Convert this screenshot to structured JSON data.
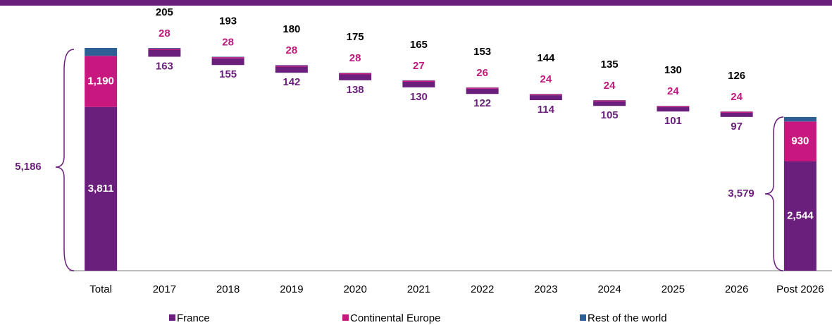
{
  "chart_data": {
    "type": "waterfall",
    "categories": [
      "Total",
      "2017",
      "2018",
      "2019",
      "2020",
      "2021",
      "2022",
      "2023",
      "2024",
      "2025",
      "2026",
      "Post 2026"
    ],
    "series": [
      {
        "name": "France",
        "color": "#6b1f7c",
        "label_color": "#6b1f7c",
        "values": [
          3811,
          163,
          155,
          142,
          138,
          130,
          122,
          114,
          105,
          101,
          97,
          2544
        ],
        "value_labels": [
          "3,811",
          "163",
          "155",
          "142",
          "138",
          "130",
          "122",
          "114",
          "105",
          "101",
          "97",
          "2,544"
        ]
      },
      {
        "name": "Continental Europe",
        "color": "#c8187f",
        "label_color": "#c0187f",
        "values": [
          1190,
          28,
          28,
          28,
          28,
          27,
          26,
          24,
          24,
          24,
          24,
          930
        ],
        "value_labels": [
          "1,190",
          "28",
          "28",
          "28",
          "28",
          "27",
          "26",
          "24",
          "24",
          "24",
          "24",
          "930"
        ]
      },
      {
        "name": "Rest of the world",
        "color": "#2e6096",
        "values": [
          185,
          14,
          10,
          10,
          9,
          8,
          5,
          6,
          6,
          5,
          5,
          105
        ]
      }
    ],
    "totals": [
      5186,
      205,
      193,
      180,
      175,
      165,
      153,
      144,
      135,
      130,
      126,
      3579
    ],
    "total_labels": [
      "5,186",
      "205",
      "193",
      "180",
      "175",
      "165",
      "153",
      "144",
      "135",
      "130",
      "126",
      "3,579"
    ]
  }
}
